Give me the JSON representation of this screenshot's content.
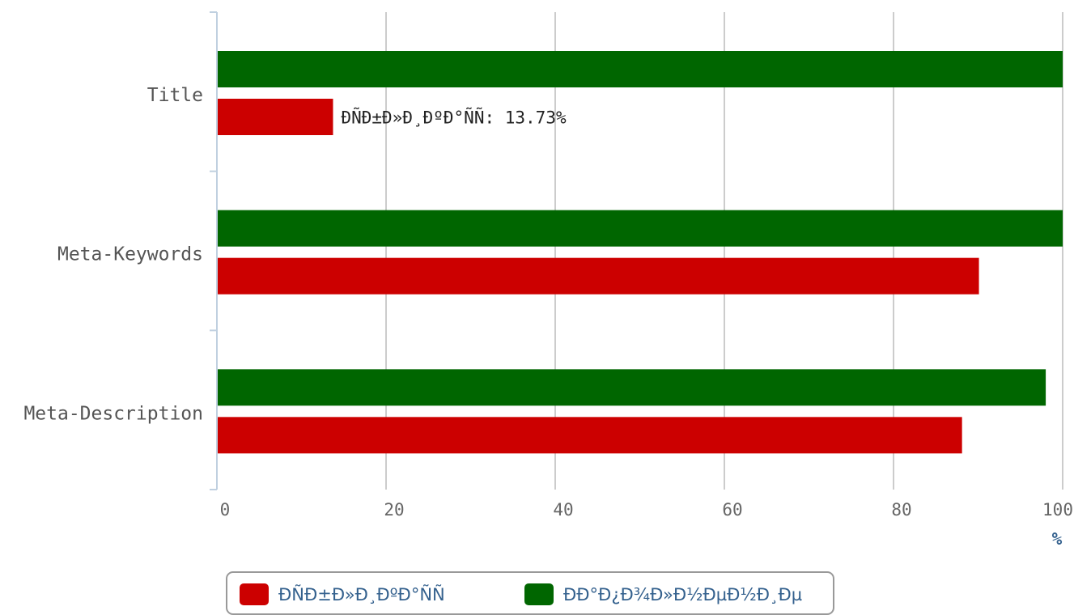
{
  "chart_data": {
    "type": "bar",
    "orientation": "horizontal",
    "categories": [
      "Title",
      "Meta-Keywords",
      "Meta-Description"
    ],
    "series": [
      {
        "name": "ÐÑÐ±Ð»Ð¸ÐºÐ°ÑÑ",
        "color": "#cc0000",
        "values": [
          13.73,
          90.1,
          88.1
        ]
      },
      {
        "name": "ÐÐ°Ð¿Ð¾Ð»Ð½ÐµÐ½Ð¸Ðµ",
        "color": "#006600",
        "values": [
          100,
          100,
          98
        ]
      }
    ],
    "data_labels": [
      {
        "series": 0,
        "category": 0,
        "text": "ÐÑÐ±Ð»Ð¸ÐºÐ°ÑÑ: 13.73%"
      }
    ],
    "xlim": [
      0,
      100
    ],
    "xticks": [
      "0",
      "20",
      "40",
      "60",
      "80",
      "100"
    ],
    "xunit": "%",
    "grid": true,
    "legend": "bottom-center"
  }
}
